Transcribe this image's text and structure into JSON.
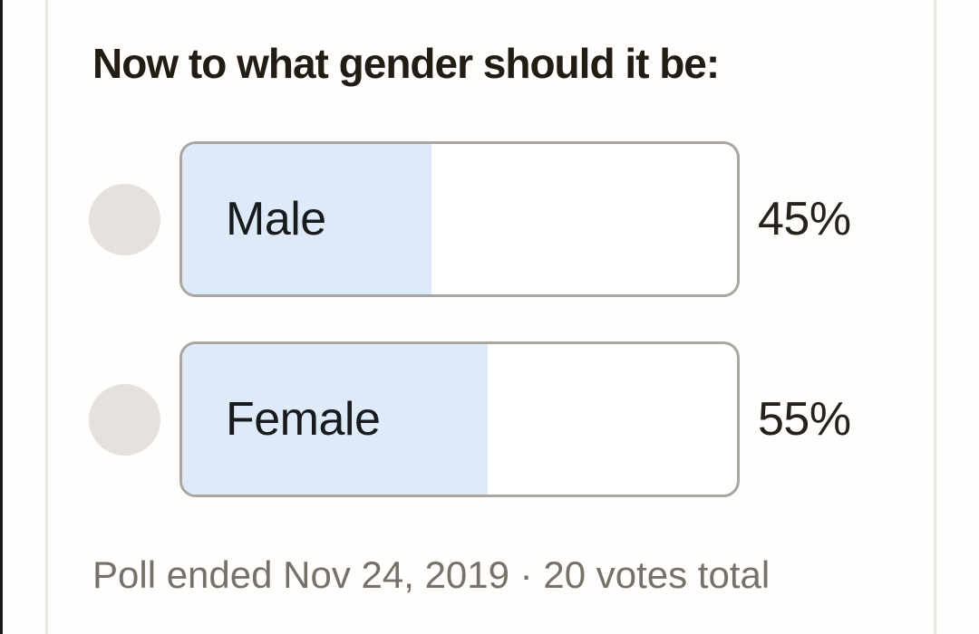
{
  "poll": {
    "question": "Now to what gender should it be:",
    "options": [
      {
        "label": "Male",
        "percent": 45,
        "percent_label": "45%"
      },
      {
        "label": "Female",
        "percent": 55,
        "percent_label": "55%"
      }
    ],
    "status": "Poll ended Nov 24, 2019 · 20 votes total",
    "total_votes": 20
  },
  "colors": {
    "fill_blue": "#dfeaf8",
    "bar_border": "#a9a6a1",
    "circle_gray": "#e5e2dd",
    "question_text": "#221c14",
    "status_text": "#767169"
  },
  "chart_data": {
    "type": "bar",
    "categories": [
      "Male",
      "Female"
    ],
    "values": [
      45,
      55
    ],
    "unit": "%",
    "title": "Now to what gender should it be:",
    "annotation": "Poll ended Nov 24, 2019 · 20 votes total",
    "total_votes": 20,
    "orientation": "horizontal",
    "xlim": [
      0,
      100
    ]
  }
}
